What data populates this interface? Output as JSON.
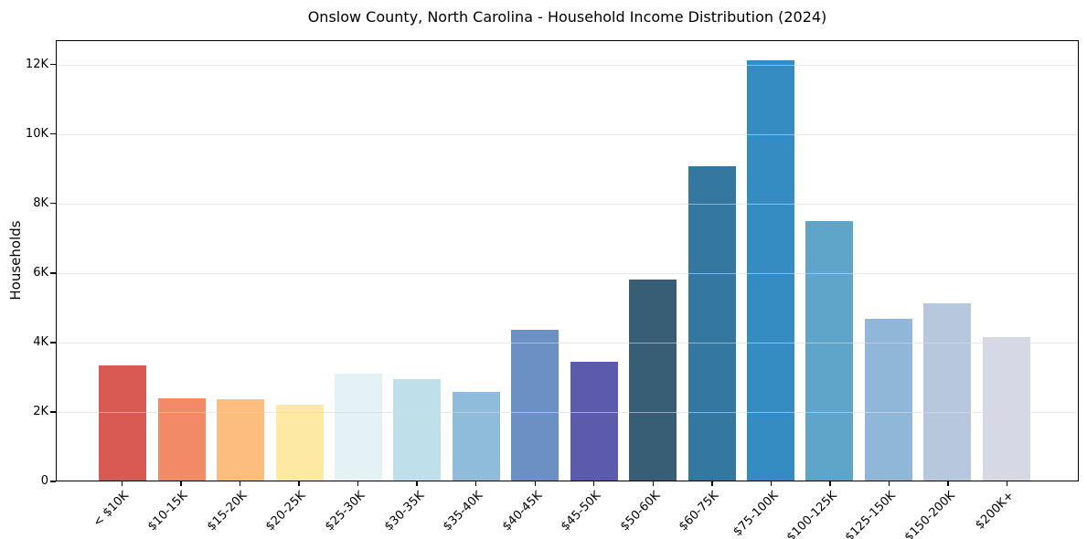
{
  "chart_data": {
    "type": "bar",
    "title": "Onslow County, North Carolina - Household Income Distribution (2024)",
    "xlabel": "",
    "ylabel": "Households",
    "categories": [
      "< $10K",
      "$10-15K",
      "$15-20K",
      "$20-25K",
      "$25-30K",
      "$30-35K",
      "$35-40K",
      "$40-45K",
      "$45-50K",
      "$50-60K",
      "$60-75K",
      "$75-100K",
      "$100-125K",
      "$125-150K",
      "$150-200K",
      "$200K+"
    ],
    "values": [
      3340,
      2370,
      2360,
      2180,
      3090,
      2940,
      2570,
      4350,
      3420,
      5800,
      9070,
      12150,
      7500,
      4680,
      5110,
      4150
    ],
    "bar_colors": [
      "#d95a52",
      "#f28a68",
      "#fcbd7f",
      "#fde8a4",
      "#e4f1f5",
      "#bfe0ea",
      "#90bcdc",
      "#6b90c4",
      "#5b5aab",
      "#375e75",
      "#34789f",
      "#348cc3",
      "#5ea5c9",
      "#90b7d8",
      "#b7c7dd",
      "#d6d8e6"
    ],
    "ylim": [
      0,
      12700
    ],
    "yticks": [
      {
        "value": 0,
        "label": "0"
      },
      {
        "value": 2000,
        "label": "2K"
      },
      {
        "value": 4000,
        "label": "4K"
      },
      {
        "value": 6000,
        "label": "6K"
      },
      {
        "value": 8000,
        "label": "8K"
      },
      {
        "value": 10000,
        "label": "10K"
      },
      {
        "value": 12000,
        "label": "12K"
      }
    ],
    "grid": "horizontal",
    "legend": "none",
    "colors": {
      "spine": "#000000",
      "gridline": "#e8e8e8",
      "text": "#000000",
      "background": "#ffffff"
    }
  }
}
